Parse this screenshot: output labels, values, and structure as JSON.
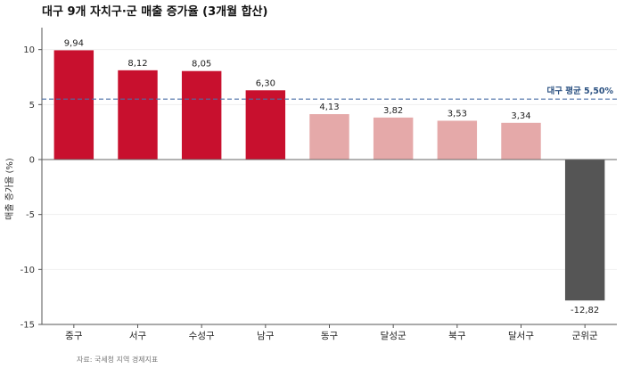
{
  "colors": {
    "top": "#c8102e",
    "mid": "#e5a9a9",
    "negative": "#555555",
    "average_line": "#4a6fa5",
    "average_label": "#2c5282"
  },
  "chart_data": {
    "type": "bar",
    "title": "대구 9개 자치구·군 매출 증가율 (3개월 합산)",
    "ylabel": "매출 증가율 (%)",
    "xlabel": "",
    "categories": [
      "중구",
      "서구",
      "수성구",
      "남구",
      "동구",
      "달성군",
      "북구",
      "달서구",
      "군위군"
    ],
    "values": [
      9.94,
      8.12,
      8.05,
      6.3,
      4.13,
      3.82,
      3.53,
      3.34,
      -12.82
    ],
    "value_labels": [
      "9,94",
      "8,12",
      "8,05",
      "6,30",
      "4,13",
      "3,82",
      "3,53",
      "3,34",
      "-12,82"
    ],
    "bar_groups": [
      "top",
      "top",
      "top",
      "top",
      "mid",
      "mid",
      "mid",
      "mid",
      "negative"
    ],
    "ylim": [
      -15,
      12
    ],
    "yticks": [
      -15,
      -10,
      -5,
      0,
      5,
      10
    ],
    "ytick_labels": [
      "-15",
      "-10",
      "-5",
      "0",
      "5",
      "10"
    ],
    "reference_line": {
      "value": 5.5,
      "label": "대구 평균 5,50%",
      "style": "dashed"
    },
    "grid": "horizontal",
    "source": "자료: 국세청 지역 경제지표"
  }
}
